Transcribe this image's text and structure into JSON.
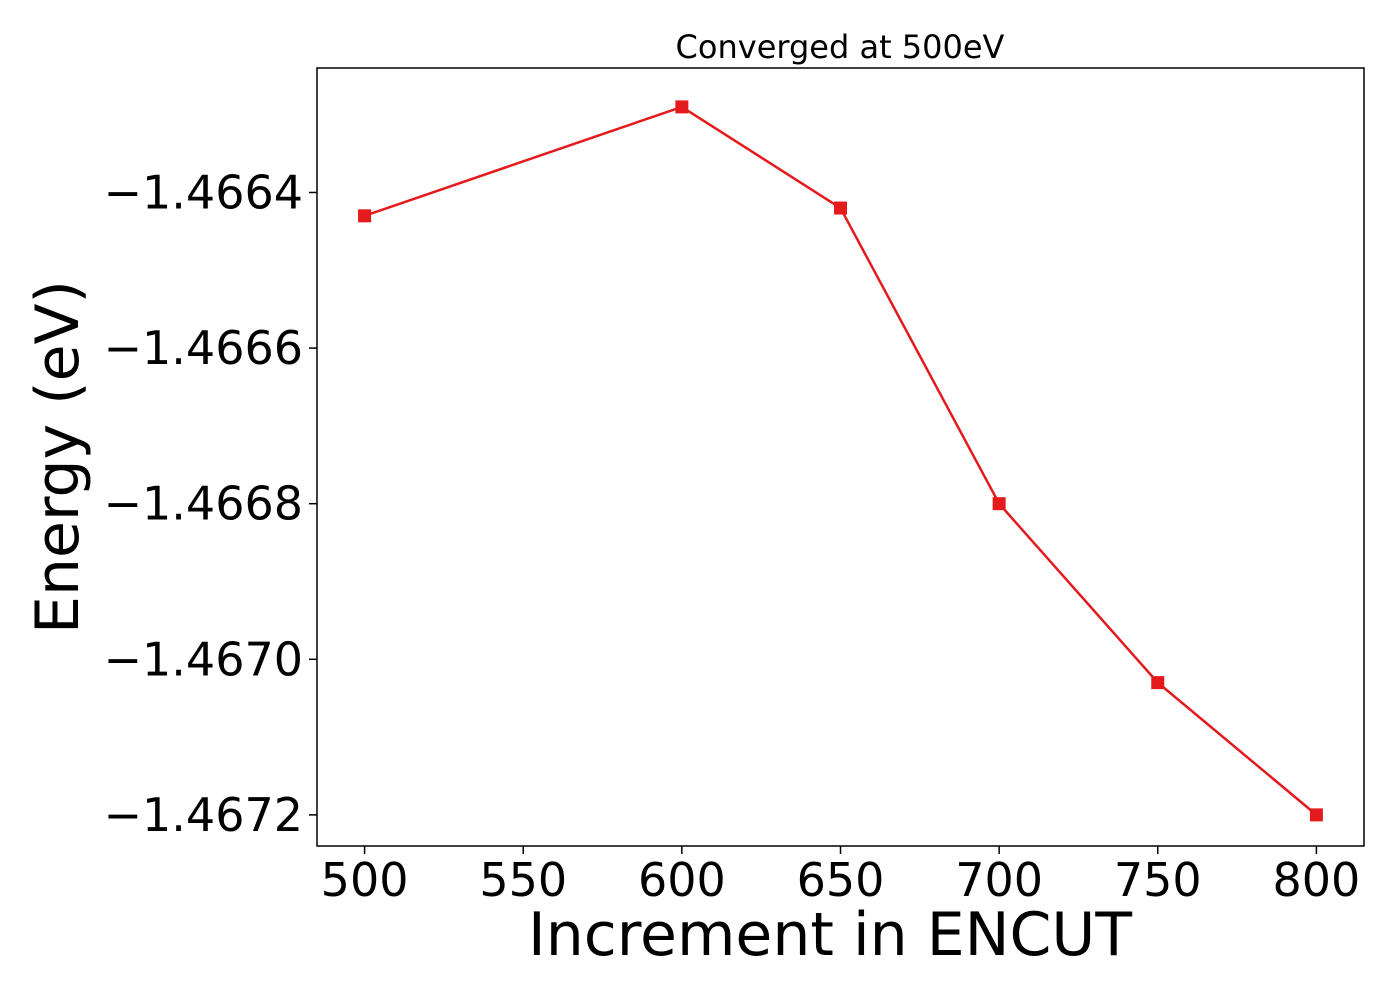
{
  "chart_data": {
    "type": "line",
    "title": "Converged at 500eV",
    "xlabel": "Increment in ENCUT",
    "ylabel": "Energy (eV)",
    "x": [
      500,
      600,
      650,
      700,
      750,
      800
    ],
    "series": [
      {
        "values": [
          -1.46643,
          -1.46629,
          -1.46642,
          -1.4668,
          -1.46703,
          -1.4672
        ],
        "color": "#e41a1c",
        "marker": "square"
      }
    ],
    "xlim": [
      485,
      815
    ],
    "ylim": [
      -1.46724,
      -1.46624
    ],
    "xticks": [
      500,
      550,
      600,
      650,
      700,
      750,
      800
    ],
    "xtick_labels": [
      "500",
      "550",
      "600",
      "650",
      "700",
      "750",
      "800"
    ],
    "yticks": [
      -1.4672,
      -1.467,
      -1.4668,
      -1.4666,
      -1.4664
    ],
    "ytick_labels": [
      "−1.4672",
      "−1.4670",
      "−1.4668",
      "−1.4666",
      "−1.4664"
    ],
    "grid": false,
    "legend": false
  }
}
